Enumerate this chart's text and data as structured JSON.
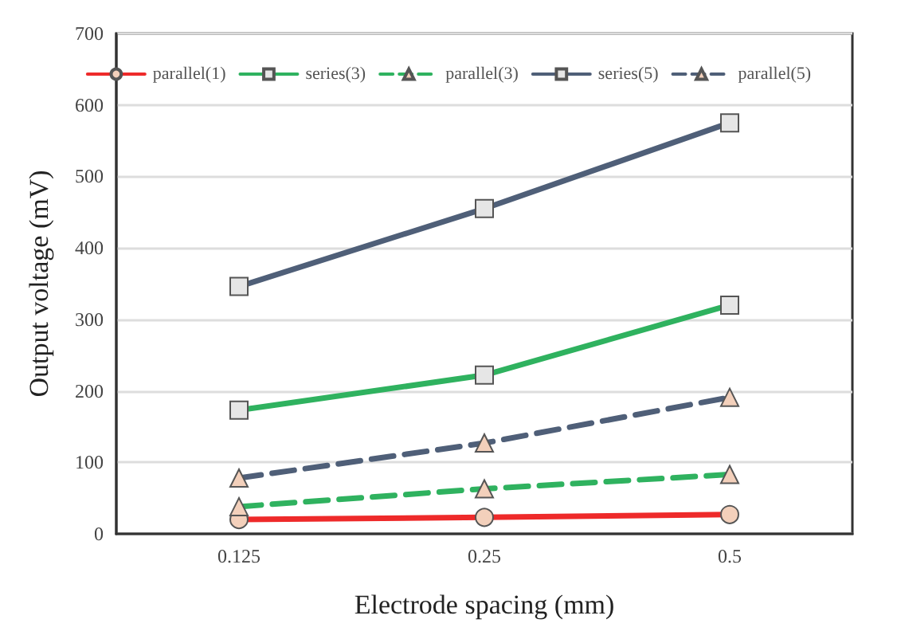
{
  "chart_data": {
    "type": "line",
    "xlabel": "Electrode spacing (mm)",
    "ylabel": "Output voltage (mV)",
    "categories": [
      "0.125",
      "0.25",
      "0.5"
    ],
    "series": [
      {
        "name": "parallel(1)",
        "color": "#ee2a2a",
        "marker": "circle",
        "line_style": "solid",
        "values": [
          20,
          23,
          27
        ]
      },
      {
        "name": "series(3)",
        "color": "#2fb25f",
        "marker": "square",
        "line_style": "solid",
        "values": [
          173,
          222,
          320
        ]
      },
      {
        "name": "parallel(3)",
        "color": "#2fb25f",
        "marker": "triangle",
        "line_style": "dashed",
        "values": [
          38,
          63,
          83
        ]
      },
      {
        "name": "series(5)",
        "color": "#4f5f78",
        "marker": "square",
        "line_style": "solid",
        "values": [
          346,
          455,
          575
        ]
      },
      {
        "name": "parallel(5)",
        "color": "#4f5f78",
        "marker": "triangle",
        "line_style": "dashed",
        "values": [
          78,
          127,
          191
        ]
      }
    ],
    "ylim": [
      0,
      700
    ],
    "yticks": [
      0,
      100,
      200,
      300,
      400,
      500,
      600,
      700
    ],
    "grid": "y",
    "legend": "top"
  }
}
